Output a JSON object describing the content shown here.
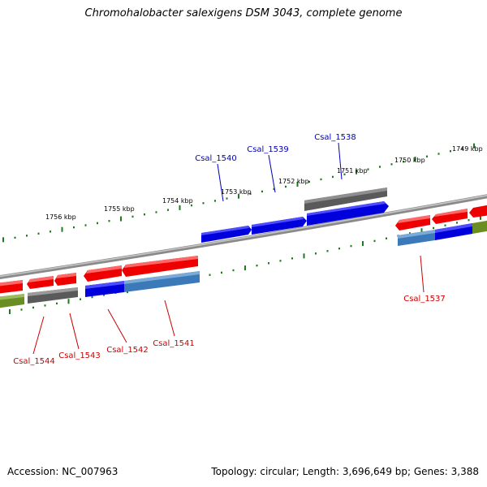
{
  "title": "Chromohalobacter salexigens DSM 3043, complete genome",
  "footer": {
    "accession": "Accession: NC_007963",
    "summary": "Topology: circular; Length: 3,696,649 bp; Genes: 3,388"
  },
  "colors": {
    "backbone": "#8a8a8a",
    "tick": "#1e7a1e",
    "red": "#ee0000",
    "blue": "#0000dd",
    "gray": "#5a5a5a",
    "steel": "#3b79b8",
    "olive": "#6b8e23",
    "label_top": "#0000bb",
    "label_bottom": "#cc0000"
  },
  "scale_labels": [
    "1749 kbp",
    "1750 kbp",
    "1751 kbp",
    "1752 kbp",
    "1753 kbp",
    "1754 kbp",
    "1755 kbp",
    "1756 kbp"
  ],
  "gene_labels_top": [
    "Csal_1538",
    "Csal_1539",
    "Csal_1540"
  ],
  "gene_labels_bottom": [
    "Csal_1537",
    "Csal_1541",
    "Csal_1542",
    "Csal_1543",
    "Csal_1544"
  ]
}
